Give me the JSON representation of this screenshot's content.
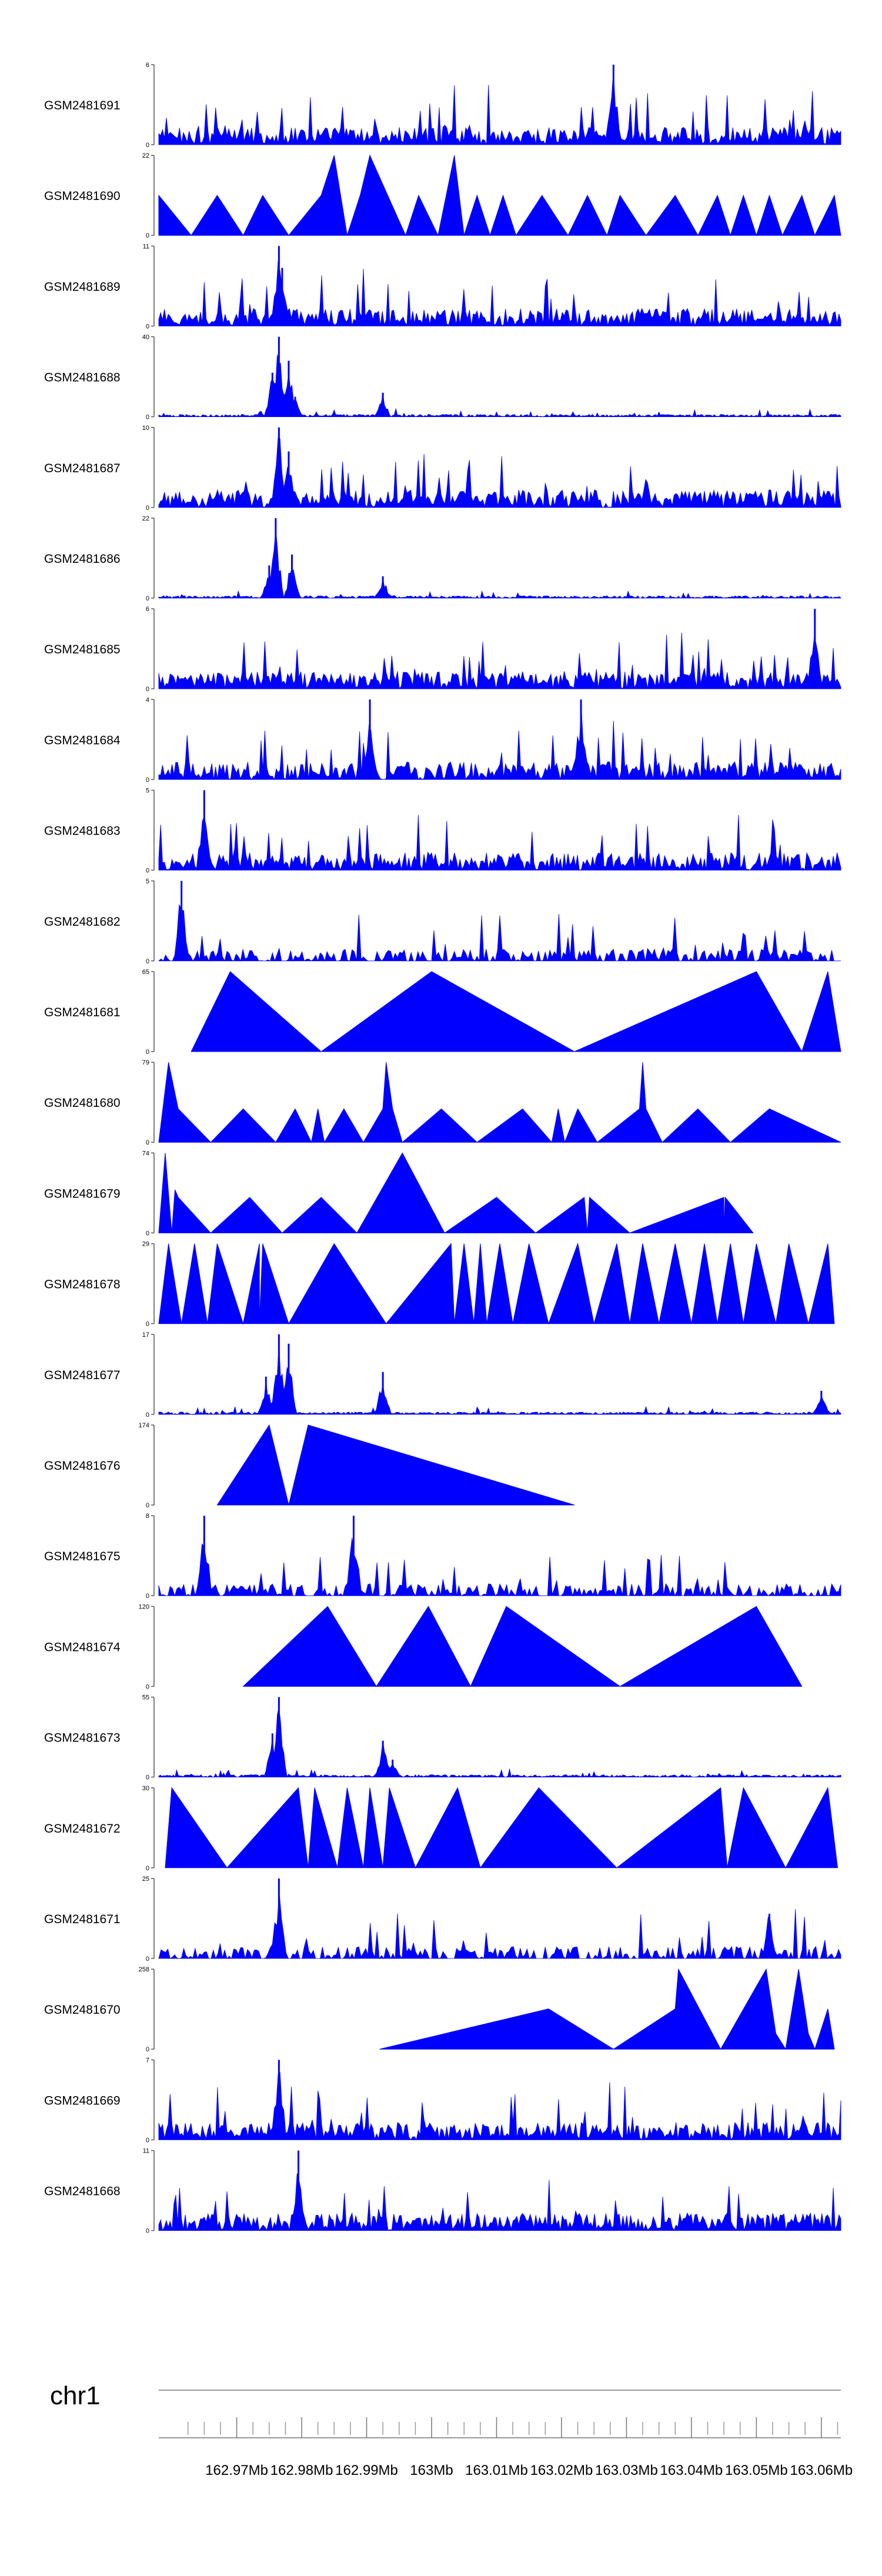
{
  "chart_data": {
    "type": "area",
    "chromosome": "chr1",
    "xlim": [
      162.958,
      163.063
    ],
    "x_unit": "Mb",
    "x_ticks": [
      162.97,
      162.98,
      162.99,
      163.0,
      163.01,
      163.02,
      163.03,
      163.04,
      163.05,
      163.06
    ],
    "x_tick_labels": [
      "162.97Mb",
      "162.98Mb",
      "162.99Mb",
      "163Mb",
      "163.01Mb",
      "163.02Mb",
      "163.03Mb",
      "163.04Mb",
      "163.05Mb",
      "163.06Mb"
    ],
    "fill_color": "#0000ff",
    "series": [
      {
        "name": "GSM2481691",
        "ymax": 6,
        "ymax_label": "6",
        "ymin_label": "0",
        "pattern": "dense",
        "peaks": [
          {
            "x": 163.028,
            "y": 6
          }
        ]
      },
      {
        "name": "GSM2481690",
        "ymax": 22,
        "ymax_label": "22",
        "ymin_label": "0",
        "pattern": "triangles",
        "points": [
          [
            162.958,
            11
          ],
          [
            162.963,
            0
          ],
          [
            162.967,
            11
          ],
          [
            162.971,
            0
          ],
          [
            162.974,
            11
          ],
          [
            162.978,
            0
          ],
          [
            162.983,
            11
          ],
          [
            162.985,
            22
          ],
          [
            162.987,
            0
          ],
          [
            162.989,
            11
          ],
          [
            162.9905,
            22
          ],
          [
            162.996,
            0
          ],
          [
            162.998,
            11
          ],
          [
            163.001,
            0
          ],
          [
            163.0035,
            22
          ],
          [
            163.005,
            0
          ],
          [
            163.007,
            11
          ],
          [
            163.009,
            0
          ],
          [
            163.011,
            11
          ],
          [
            163.013,
            0
          ],
          [
            163.017,
            11
          ],
          [
            163.021,
            0
          ],
          [
            163.024,
            11
          ],
          [
            163.027,
            0
          ],
          [
            163.029,
            11
          ],
          [
            163.033,
            0
          ],
          [
            163.0375,
            11
          ],
          [
            163.041,
            0
          ],
          [
            163.044,
            11
          ],
          [
            163.046,
            0
          ],
          [
            163.048,
            11
          ],
          [
            163.05,
            0
          ],
          [
            163.052,
            11
          ],
          [
            163.054,
            0
          ],
          [
            163.057,
            11
          ],
          [
            163.059,
            0
          ],
          [
            163.062,
            11
          ],
          [
            163.063,
            0
          ]
        ]
      },
      {
        "name": "GSM2481689",
        "ymax": 11,
        "ymax_label": "11",
        "ymin_label": "0",
        "pattern": "dense",
        "peaks": [
          {
            "x": 162.9765,
            "y": 11
          },
          {
            "x": 162.977,
            "y": 8
          }
        ]
      },
      {
        "name": "GSM2481688",
        "ymax": 40,
        "ymax_label": "40",
        "ymin_label": "0",
        "pattern": "sparse",
        "peaks": [
          {
            "x": 162.9765,
            "y": 40
          },
          {
            "x": 162.978,
            "y": 28
          },
          {
            "x": 162.9755,
            "y": 22
          },
          {
            "x": 162.979,
            "y": 10
          },
          {
            "x": 162.9925,
            "y": 12
          }
        ]
      },
      {
        "name": "GSM2481687",
        "ymax": 10,
        "ymax_label": "10",
        "ymin_label": "0",
        "pattern": "dense",
        "peaks": [
          {
            "x": 162.9765,
            "y": 10
          },
          {
            "x": 162.978,
            "y": 7
          }
        ]
      },
      {
        "name": "GSM2481686",
        "ymax": 22,
        "ymax_label": "22",
        "ymin_label": "0",
        "pattern": "sparse",
        "peaks": [
          {
            "x": 162.976,
            "y": 22
          },
          {
            "x": 162.9785,
            "y": 12
          },
          {
            "x": 162.975,
            "y": 9
          },
          {
            "x": 162.9925,
            "y": 6
          }
        ]
      },
      {
        "name": "GSM2481685",
        "ymax": 6,
        "ymax_label": "6",
        "ymin_label": "0",
        "pattern": "dense",
        "peaks": [
          {
            "x": 163.059,
            "y": 6
          }
        ]
      },
      {
        "name": "GSM2481684",
        "ymax": 4,
        "ymax_label": "4",
        "ymin_label": "0",
        "pattern": "dense",
        "peaks": [
          {
            "x": 162.9905,
            "y": 4
          },
          {
            "x": 163.023,
            "y": 4
          }
        ]
      },
      {
        "name": "GSM2481683",
        "ymax": 5,
        "ymax_label": "5",
        "ymin_label": "0",
        "pattern": "dense",
        "peaks": [
          {
            "x": 162.965,
            "y": 5
          }
        ]
      },
      {
        "name": "GSM2481682",
        "ymax": 5,
        "ymax_label": "5",
        "ymin_label": "0",
        "pattern": "medium",
        "peaks": [
          {
            "x": 162.9615,
            "y": 5
          }
        ]
      },
      {
        "name": "GSM2481681",
        "ymax": 65,
        "ymax_label": "65",
        "ymin_label": "0",
        "pattern": "triangles",
        "points": [
          [
            162.963,
            0
          ],
          [
            162.969,
            65
          ],
          [
            162.983,
            0
          ],
          [
            163.0,
            65
          ],
          [
            163.022,
            0
          ],
          [
            163.05,
            65
          ],
          [
            163.057,
            0
          ],
          [
            163.061,
            65
          ],
          [
            163.063,
            0
          ]
        ]
      },
      {
        "name": "GSM2481680",
        "ymax": 79,
        "ymax_label": "79",
        "ymin_label": "0",
        "pattern": "triangles",
        "points": [
          [
            162.958,
            0
          ],
          [
            162.9595,
            79
          ],
          [
            162.961,
            33
          ],
          [
            162.966,
            0
          ],
          [
            162.971,
            33
          ],
          [
            162.976,
            0
          ],
          [
            162.979,
            33
          ],
          [
            162.9815,
            0
          ],
          [
            162.9825,
            33
          ],
          [
            162.9835,
            0
          ],
          [
            162.9865,
            33
          ],
          [
            162.9895,
            0
          ],
          [
            162.9925,
            33
          ],
          [
            162.993,
            79
          ],
          [
            162.994,
            33
          ],
          [
            162.9955,
            0
          ],
          [
            163.0015,
            33
          ],
          [
            163.007,
            0
          ],
          [
            163.014,
            33
          ],
          [
            163.0185,
            0
          ],
          [
            163.0195,
            33
          ],
          [
            163.0205,
            0
          ],
          [
            163.0225,
            33
          ],
          [
            163.0255,
            0
          ],
          [
            163.032,
            33
          ],
          [
            163.0325,
            79
          ],
          [
            163.033,
            33
          ],
          [
            163.0355,
            0
          ],
          [
            163.041,
            33
          ],
          [
            163.046,
            0
          ],
          [
            163.052,
            33
          ],
          [
            163.063,
            0
          ]
        ]
      },
      {
        "name": "GSM2481679",
        "ymax": 74,
        "ymax_label": "74",
        "ymin_label": "0",
        "pattern": "triangles",
        "points": [
          [
            162.958,
            0
          ],
          [
            162.959,
            74
          ],
          [
            162.96,
            0
          ],
          [
            162.9605,
            40
          ],
          [
            162.961,
            33
          ],
          [
            162.966,
            0
          ],
          [
            162.972,
            33
          ],
          [
            162.977,
            0
          ],
          [
            162.983,
            33
          ],
          [
            162.9885,
            0
          ],
          [
            162.9955,
            74
          ],
          [
            163.002,
            0
          ],
          [
            163.01,
            33
          ],
          [
            163.016,
            0
          ],
          [
            163.0235,
            33
          ],
          [
            163.024,
            0
          ],
          [
            163.0243,
            33
          ],
          [
            163.0305,
            0
          ],
          [
            163.045,
            33
          ],
          [
            163.045,
            0
          ],
          [
            163.0452,
            33
          ],
          [
            163.0495,
            0
          ]
        ]
      },
      {
        "name": "GSM2481678",
        "ymax": 29,
        "ymax_label": "29",
        "ymin_label": "0",
        "pattern": "triangles",
        "points": [
          [
            162.958,
            0
          ],
          [
            162.9595,
            29
          ],
          [
            162.9615,
            0
          ],
          [
            162.9635,
            29
          ],
          [
            162.9655,
            0
          ],
          [
            162.967,
            29
          ],
          [
            162.971,
            0
          ],
          [
            162.9735,
            29
          ],
          [
            162.9735,
            0
          ],
          [
            162.974,
            29
          ],
          [
            162.978,
            0
          ],
          [
            162.985,
            29
          ],
          [
            162.993,
            0
          ],
          [
            163.003,
            29
          ],
          [
            163.0035,
            0
          ],
          [
            163.005,
            29
          ],
          [
            163.0065,
            0
          ],
          [
            163.0075,
            29
          ],
          [
            163.0085,
            0
          ],
          [
            163.0105,
            29
          ],
          [
            163.0125,
            0
          ],
          [
            163.015,
            29
          ],
          [
            163.018,
            0
          ],
          [
            163.0225,
            29
          ],
          [
            163.025,
            0
          ],
          [
            163.0285,
            29
          ],
          [
            163.0305,
            0
          ],
          [
            163.0325,
            29
          ],
          [
            163.035,
            0
          ],
          [
            163.0375,
            29
          ],
          [
            163.04,
            0
          ],
          [
            163.042,
            29
          ],
          [
            163.044,
            0
          ],
          [
            163.046,
            29
          ],
          [
            163.048,
            0
          ],
          [
            163.05,
            29
          ],
          [
            163.053,
            0
          ],
          [
            163.055,
            29
          ],
          [
            163.058,
            0
          ],
          [
            163.061,
            29
          ],
          [
            163.062,
            0
          ]
        ]
      },
      {
        "name": "GSM2481677",
        "ymax": 17,
        "ymax_label": "17",
        "ymin_label": "0",
        "pattern": "sparse",
        "peaks": [
          {
            "x": 162.9765,
            "y": 17
          },
          {
            "x": 162.978,
            "y": 15
          },
          {
            "x": 162.9745,
            "y": 8
          },
          {
            "x": 162.9925,
            "y": 9
          },
          {
            "x": 163.06,
            "y": 5
          }
        ]
      },
      {
        "name": "GSM2481676",
        "ymax": 174,
        "ymax_label": "174",
        "ymin_label": "0",
        "pattern": "triangles",
        "points": [
          [
            162.967,
            0
          ],
          [
            162.975,
            174
          ],
          [
            162.978,
            0
          ],
          [
            162.981,
            174
          ],
          [
            163.022,
            0
          ]
        ]
      },
      {
        "name": "GSM2481675",
        "ymax": 8,
        "ymax_label": "8",
        "ymin_label": "0",
        "pattern": "medium",
        "peaks": [
          {
            "x": 162.965,
            "y": 8
          },
          {
            "x": 162.988,
            "y": 8
          }
        ]
      },
      {
        "name": "GSM2481674",
        "ymax": 120,
        "ymax_label": "120",
        "ymin_label": "0",
        "pattern": "triangles",
        "points": [
          [
            162.971,
            0
          ],
          [
            162.984,
            120
          ],
          [
            162.9915,
            0
          ],
          [
            162.9995,
            120
          ],
          [
            163.006,
            0
          ],
          [
            163.0115,
            120
          ],
          [
            163.029,
            0
          ],
          [
            163.05,
            120
          ],
          [
            163.057,
            0
          ]
        ]
      },
      {
        "name": "GSM2481673",
        "ymax": 55,
        "ymax_label": "55",
        "ymin_label": "0",
        "pattern": "sparse",
        "peaks": [
          {
            "x": 162.9765,
            "y": 55
          },
          {
            "x": 162.9755,
            "y": 30
          },
          {
            "x": 162.9925,
            "y": 25
          },
          {
            "x": 162.994,
            "y": 12
          }
        ]
      },
      {
        "name": "GSM2481672",
        "ymax": 30,
        "ymax_label": "30",
        "ymin_label": "0",
        "pattern": "triangles",
        "points": [
          [
            162.959,
            0
          ],
          [
            162.96,
            30
          ],
          [
            162.9685,
            0
          ],
          [
            162.9795,
            30
          ],
          [
            162.981,
            0
          ],
          [
            162.982,
            30
          ],
          [
            162.9855,
            0
          ],
          [
            162.987,
            30
          ],
          [
            162.9895,
            0
          ],
          [
            162.9905,
            30
          ],
          [
            162.9925,
            0
          ],
          [
            162.9935,
            30
          ],
          [
            162.9975,
            0
          ],
          [
            163.004,
            30
          ],
          [
            163.0075,
            0
          ],
          [
            163.0165,
            30
          ],
          [
            163.0285,
            0
          ],
          [
            163.0445,
            30
          ],
          [
            163.0455,
            0
          ],
          [
            163.048,
            30
          ],
          [
            163.0545,
            0
          ],
          [
            163.061,
            30
          ],
          [
            163.0625,
            0
          ]
        ]
      },
      {
        "name": "GSM2481671",
        "ymax": 25,
        "ymax_label": "25",
        "ymin_label": "0",
        "pattern": "medium",
        "peaks": [
          {
            "x": 162.9765,
            "y": 25
          },
          {
            "x": 163.052,
            "y": 14
          }
        ]
      },
      {
        "name": "GSM2481670",
        "ymax": 258,
        "ymax_label": "258",
        "ymin_label": "0",
        "pattern": "triangles",
        "points": [
          [
            162.992,
            0
          ],
          [
            163.018,
            130
          ],
          [
            163.028,
            0
          ],
          [
            163.0375,
            130
          ],
          [
            163.038,
            258
          ],
          [
            163.0445,
            0
          ],
          [
            163.0515,
            258
          ],
          [
            163.053,
            50
          ],
          [
            163.0545,
            0
          ],
          [
            163.0565,
            258
          ],
          [
            163.058,
            50
          ],
          [
            163.059,
            0
          ],
          [
            163.061,
            130
          ],
          [
            163.062,
            0
          ]
        ]
      },
      {
        "name": "GSM2481669",
        "ymax": 7,
        "ymax_label": "7",
        "ymin_label": "0",
        "pattern": "dense",
        "peaks": [
          {
            "x": 162.9765,
            "y": 7
          }
        ]
      },
      {
        "name": "GSM2481668",
        "ymax": 11,
        "ymax_label": "11",
        "ymin_label": "0",
        "pattern": "dense",
        "peaks": [
          {
            "x": 162.9795,
            "y": 11
          }
        ]
      }
    ]
  }
}
